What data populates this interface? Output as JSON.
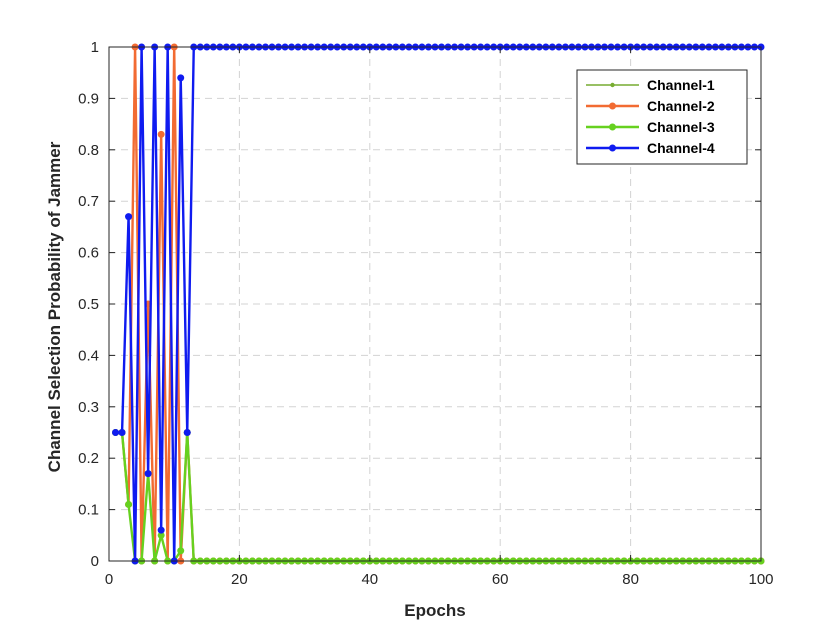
{
  "chart_data": {
    "type": "line",
    "title": "",
    "xlabel": "Epochs",
    "ylabel": "Channel Selection Probability of Jammer",
    "xlim": [
      0,
      100
    ],
    "ylim": [
      0,
      1
    ],
    "xticks": [
      0,
      20,
      40,
      60,
      80,
      100
    ],
    "xtick_labels": [
      "0",
      "20",
      "40",
      "60",
      "80",
      "100"
    ],
    "yticks": [
      0,
      0.1,
      0.2,
      0.3,
      0.4,
      0.5,
      0.6,
      0.7,
      0.8,
      0.9,
      1
    ],
    "ytick_labels": [
      "0",
      "0.1",
      "0.2",
      "0.3",
      "0.4",
      "0.5",
      "0.6",
      "0.7",
      "0.8",
      "0.9",
      "1"
    ],
    "grid": true,
    "legend_position": "top-right",
    "x": [
      1,
      2,
      3,
      4,
      5,
      6,
      7,
      8,
      9,
      10,
      11,
      12,
      13,
      14,
      15,
      16,
      17,
      18,
      19,
      20,
      21,
      22,
      23,
      24,
      25,
      26,
      27,
      28,
      29,
      30,
      31,
      32,
      33,
      34,
      35,
      36,
      37,
      38,
      39,
      40,
      41,
      42,
      43,
      44,
      45,
      46,
      47,
      48,
      49,
      50,
      51,
      52,
      53,
      54,
      55,
      56,
      57,
      58,
      59,
      60,
      61,
      62,
      63,
      64,
      65,
      66,
      67,
      68,
      69,
      70,
      71,
      72,
      73,
      74,
      75,
      76,
      77,
      78,
      79,
      80,
      81,
      82,
      83,
      84,
      85,
      86,
      87,
      88,
      89,
      90,
      91,
      92,
      93,
      94,
      95,
      96,
      97,
      98,
      99,
      100
    ],
    "series": [
      {
        "name": "Channel-1",
        "color": "#77ac30",
        "marker_size": 2.2,
        "line_width": 1.6,
        "values_head": [
          0.25,
          0.25,
          0.11,
          0,
          0,
          0.17,
          0,
          0.05,
          0,
          0,
          0.02,
          0.25
        ],
        "tail_value": 0
      },
      {
        "name": "Channel-2",
        "color": "#f26b32",
        "marker_size": 3.5,
        "line_width": 2.4,
        "values_head": [
          0.25,
          0.25,
          0.11,
          1,
          0,
          0.5,
          0,
          0.83,
          0,
          1,
          0,
          0.25
        ],
        "tail_value": 0
      },
      {
        "name": "Channel-3",
        "color": "#66d11f",
        "marker_size": 3.5,
        "line_width": 2.4,
        "values_head": [
          0.25,
          0.25,
          0.11,
          0,
          0,
          0.17,
          0,
          0.05,
          0,
          0,
          0.02,
          0.25
        ],
        "tail_value": 0
      },
      {
        "name": "Channel-4",
        "color": "#0f1bf0",
        "marker_size": 3.5,
        "line_width": 2.4,
        "values_head": [
          0.25,
          0.25,
          0.67,
          0,
          1,
          0.17,
          1,
          0.06,
          1,
          0,
          0.94,
          0.25
        ],
        "tail_value": 1
      }
    ]
  }
}
